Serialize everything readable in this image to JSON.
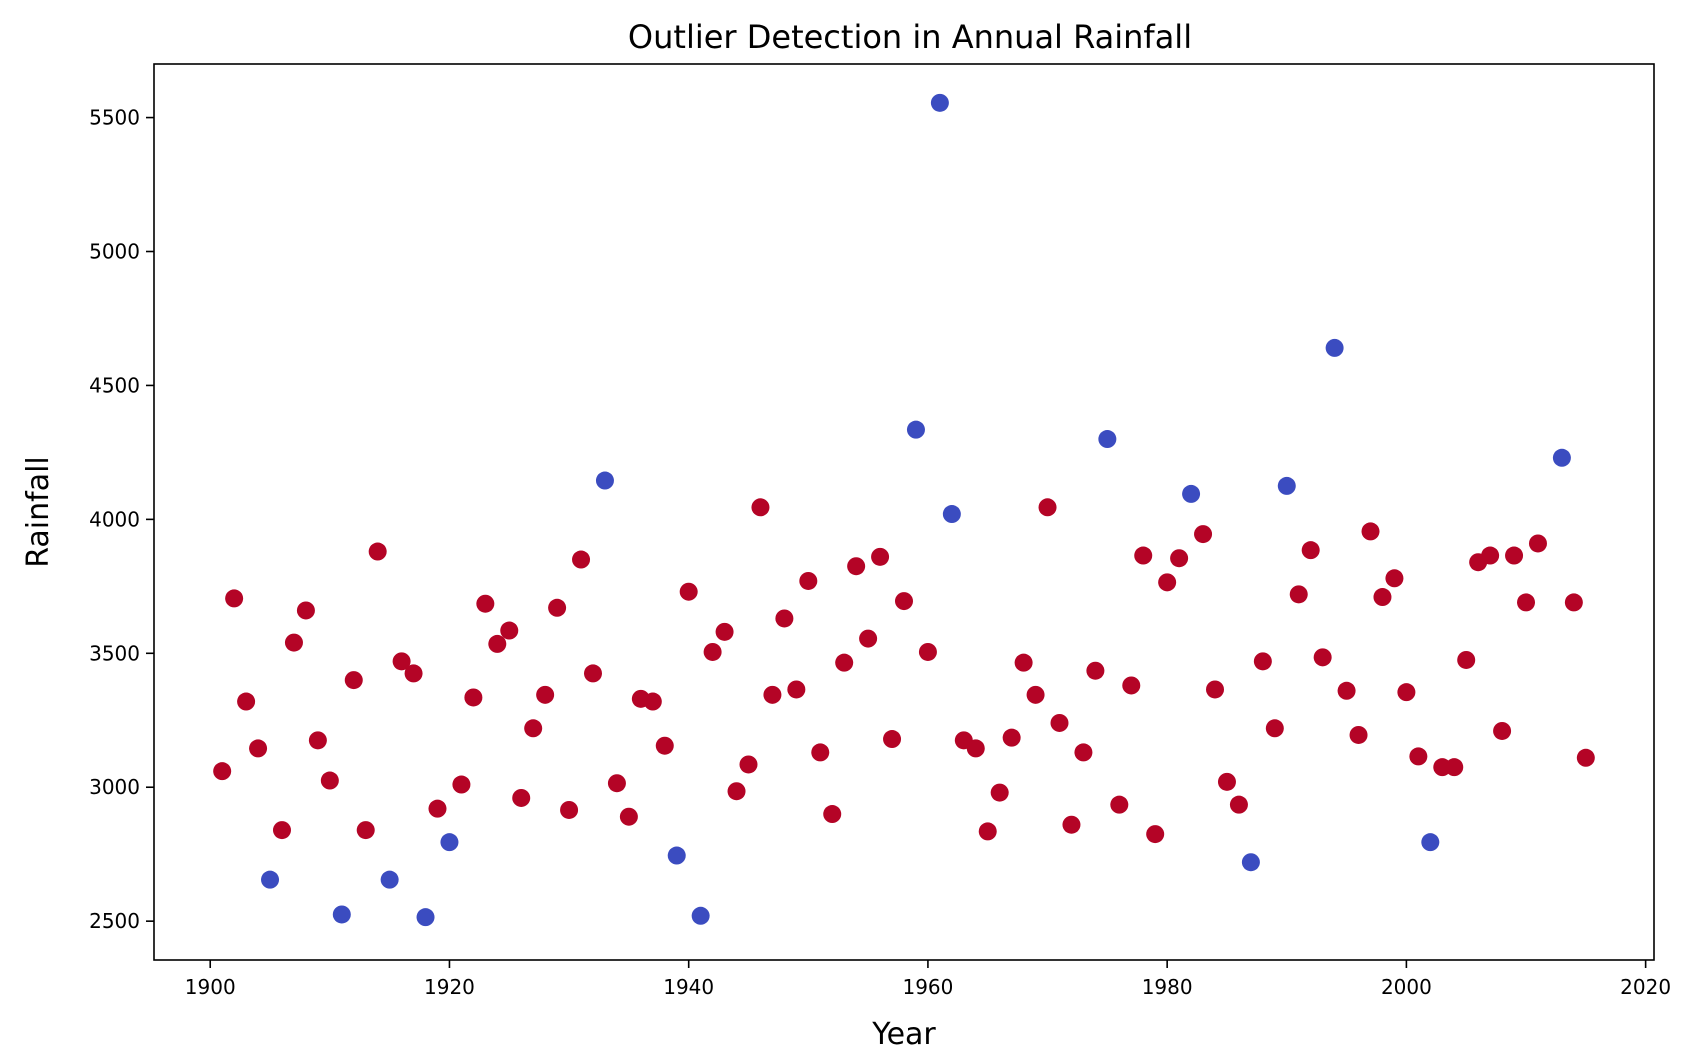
{
  "chart_data": {
    "type": "scatter",
    "title": "Outlier Detection in Annual Rainfall",
    "xlabel": "Year",
    "ylabel": "Rainfall",
    "xlim": [
      1895.3,
      2020.7
    ],
    "ylim": [
      2355,
      5700
    ],
    "xticks": [
      1900,
      1920,
      1940,
      1960,
      1980,
      2000,
      2020
    ],
    "yticks": [
      2500,
      3000,
      3500,
      4000,
      4500,
      5000,
      5500
    ],
    "grid": false,
    "legend": "none",
    "colors": {
      "normal": "#b40426",
      "outlier": "#3b4cc0"
    },
    "series": [
      {
        "class": "normal",
        "points": [
          [
            1901,
            3060
          ],
          [
            1902,
            3705
          ],
          [
            1903,
            3320
          ],
          [
            1904,
            3145
          ],
          [
            1906,
            2840
          ],
          [
            1907,
            3540
          ],
          [
            1908,
            3660
          ],
          [
            1909,
            3175
          ],
          [
            1910,
            3025
          ],
          [
            1912,
            3400
          ],
          [
            1913,
            2840
          ],
          [
            1914,
            3880
          ],
          [
            1916,
            3470
          ],
          [
            1917,
            3425
          ],
          [
            1919,
            2920
          ],
          [
            1921,
            3010
          ],
          [
            1922,
            3335
          ],
          [
            1923,
            3685
          ],
          [
            1924,
            3535
          ],
          [
            1925,
            3585
          ],
          [
            1926,
            2960
          ],
          [
            1927,
            3220
          ],
          [
            1928,
            3345
          ],
          [
            1929,
            3670
          ],
          [
            1930,
            2915
          ],
          [
            1931,
            3850
          ],
          [
            1932,
            3425
          ],
          [
            1934,
            3015
          ],
          [
            1935,
            2890
          ],
          [
            1936,
            3330
          ],
          [
            1937,
            3320
          ],
          [
            1938,
            3155
          ],
          [
            1940,
            3730
          ],
          [
            1942,
            3505
          ],
          [
            1943,
            3580
          ],
          [
            1944,
            2985
          ],
          [
            1945,
            3085
          ],
          [
            1946,
            4045
          ],
          [
            1947,
            3345
          ],
          [
            1948,
            3630
          ],
          [
            1949,
            3365
          ],
          [
            1950,
            3770
          ],
          [
            1951,
            3130
          ],
          [
            1952,
            2900
          ],
          [
            1953,
            3465
          ],
          [
            1954,
            3825
          ],
          [
            1955,
            3555
          ],
          [
            1956,
            3860
          ],
          [
            1957,
            3180
          ],
          [
            1958,
            3695
          ],
          [
            1960,
            3505
          ],
          [
            1963,
            3175
          ],
          [
            1964,
            3145
          ],
          [
            1965,
            2835
          ],
          [
            1966,
            2980
          ],
          [
            1967,
            3185
          ],
          [
            1968,
            3465
          ],
          [
            1969,
            3345
          ],
          [
            1970,
            4045
          ],
          [
            1971,
            3240
          ],
          [
            1972,
            2860
          ],
          [
            1973,
            3130
          ],
          [
            1974,
            3435
          ],
          [
            1976,
            2935
          ],
          [
            1977,
            3380
          ],
          [
            1978,
            3865
          ],
          [
            1979,
            2825
          ],
          [
            1980,
            3765
          ],
          [
            1981,
            3855
          ],
          [
            1983,
            3945
          ],
          [
            1984,
            3365
          ],
          [
            1985,
            3020
          ],
          [
            1986,
            2935
          ],
          [
            1988,
            3470
          ],
          [
            1989,
            3220
          ],
          [
            1991,
            3720
          ],
          [
            1992,
            3885
          ],
          [
            1993,
            3485
          ],
          [
            1995,
            3360
          ],
          [
            1996,
            3195
          ],
          [
            1997,
            3955
          ],
          [
            1998,
            3710
          ],
          [
            1999,
            3780
          ],
          [
            2000,
            3355
          ],
          [
            2001,
            3115
          ],
          [
            2003,
            3075
          ],
          [
            2004,
            3075
          ],
          [
            2005,
            3475
          ],
          [
            2006,
            3840
          ],
          [
            2007,
            3865
          ],
          [
            2008,
            3210
          ],
          [
            2009,
            3865
          ],
          [
            2010,
            3690
          ],
          [
            2011,
            3910
          ],
          [
            2014,
            3690
          ],
          [
            2015,
            3110
          ]
        ]
      },
      {
        "class": "outlier",
        "points": [
          [
            1905,
            2655
          ],
          [
            1911,
            2525
          ],
          [
            1915,
            2655
          ],
          [
            1918,
            2515
          ],
          [
            1920,
            2795
          ],
          [
            1933,
            4145
          ],
          [
            1939,
            2745
          ],
          [
            1941,
            2520
          ],
          [
            1959,
            4335
          ],
          [
            1961,
            5555
          ],
          [
            1962,
            4020
          ],
          [
            1975,
            4300
          ],
          [
            1982,
            4095
          ],
          [
            1987,
            2720
          ],
          [
            1990,
            4125
          ],
          [
            1994,
            4640
          ],
          [
            2002,
            2795
          ],
          [
            2013,
            4230
          ]
        ]
      }
    ]
  }
}
